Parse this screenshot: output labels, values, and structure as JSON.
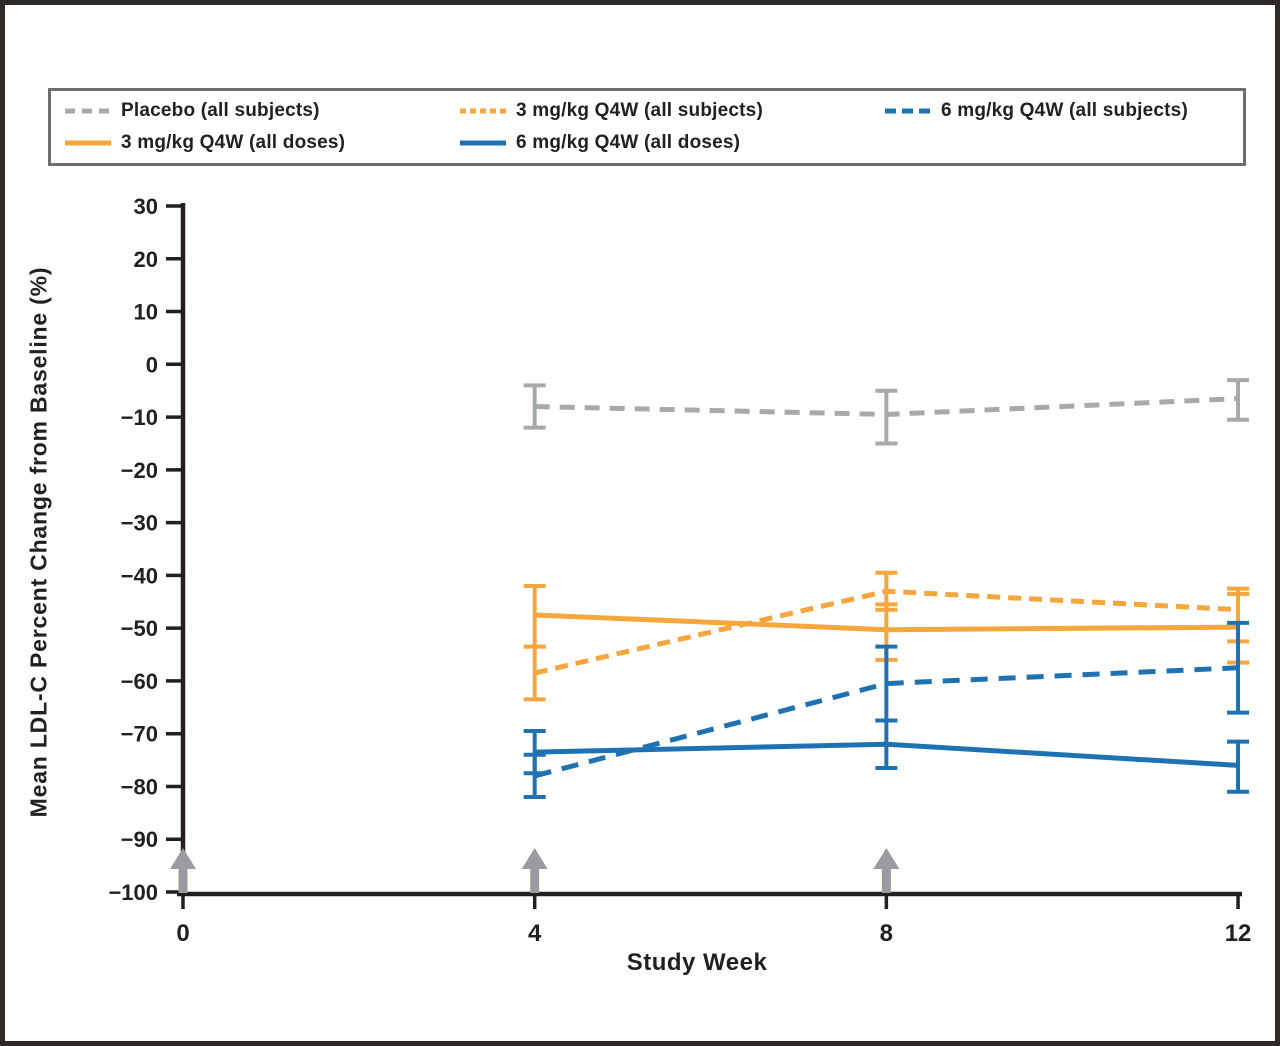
{
  "figure": {
    "xlabel": "Study Week",
    "ylabel": "Mean LDL-C Percent Change from Baseline (%)"
  },
  "colors": {
    "placebo_gray": "#A6AAAD",
    "orange": "#F5A63C",
    "blue": "#1F72B2",
    "axis_ink": "#231f20",
    "arrow_gray": "#9A9C9F"
  },
  "legend": {
    "items": [
      {
        "label": "Placebo (all subjects)",
        "series_index": 0
      },
      {
        "label": "3 mg/kg Q4W (all subjects)",
        "series_index": 1
      },
      {
        "label": "6 mg/kg Q4W (all subjects)",
        "series_index": 3
      },
      {
        "label": "3 mg/kg Q4W (all doses)",
        "series_index": 2
      },
      {
        "label": "6 mg/kg Q4W (all doses)",
        "series_index": 4
      }
    ]
  },
  "chart_data": {
    "type": "line",
    "title": "",
    "xlabel": "Study Week",
    "ylabel": "Mean LDL-C Percent Change from Baseline (%)",
    "xlim": [
      0,
      12
    ],
    "ylim": [
      -100,
      30
    ],
    "x_ticks": [
      0,
      4,
      8,
      12
    ],
    "y_ticks": [
      30,
      20,
      10,
      0,
      -10,
      -20,
      -30,
      -40,
      -50,
      -60,
      -70,
      -80,
      -90,
      -100
    ],
    "grid": false,
    "legend_position": "top",
    "dose_arrows_at_weeks": [
      0,
      4,
      8
    ],
    "series": [
      {
        "name": "Placebo (all subjects)",
        "style": "dashed",
        "color": "#A6AAAD",
        "x": [
          4,
          8,
          12
        ],
        "y": [
          -8,
          -9.5,
          -6.5
        ],
        "err_high": [
          -4,
          -5,
          -3
        ],
        "err_low": [
          -12,
          -15,
          -10.5
        ]
      },
      {
        "name": "3 mg/kg Q4W (all subjects)",
        "style": "dashed",
        "color": "#F5A63C",
        "x": [
          4,
          8,
          12
        ],
        "y": [
          -58.5,
          -43,
          -46.5
        ],
        "err_high": [
          -53.5,
          -39.5,
          -42.5
        ],
        "err_low": [
          -63.5,
          -46.5,
          -52.5
        ]
      },
      {
        "name": "3 mg/kg Q4W (all doses)",
        "style": "solid",
        "color": "#F5A63C",
        "x": [
          4,
          8,
          12
        ],
        "y": [
          -47.5,
          -50.3,
          -49.8
        ],
        "err_high": [
          -42,
          -45.5,
          -43.5
        ],
        "err_low": [
          -53.5,
          -56,
          -56.5
        ]
      },
      {
        "name": "6 mg/kg Q4W (all subjects)",
        "style": "dashed",
        "color": "#1F72B2",
        "x": [
          4,
          8,
          12
        ],
        "y": [
          -78,
          -60.5,
          -57.5
        ],
        "err_high": [
          -74,
          -53.5,
          -49
        ],
        "err_low": [
          -82,
          -67.5,
          -66
        ]
      },
      {
        "name": "6 mg/kg Q4W (all doses)",
        "style": "solid",
        "color": "#1F72B2",
        "x": [
          4,
          8,
          12
        ],
        "y": [
          -73.5,
          -72,
          -76
        ],
        "err_high": [
          -69.5,
          -67.5,
          -71.5
        ],
        "err_low": [
          -77.5,
          -76.5,
          -81
        ]
      }
    ]
  }
}
